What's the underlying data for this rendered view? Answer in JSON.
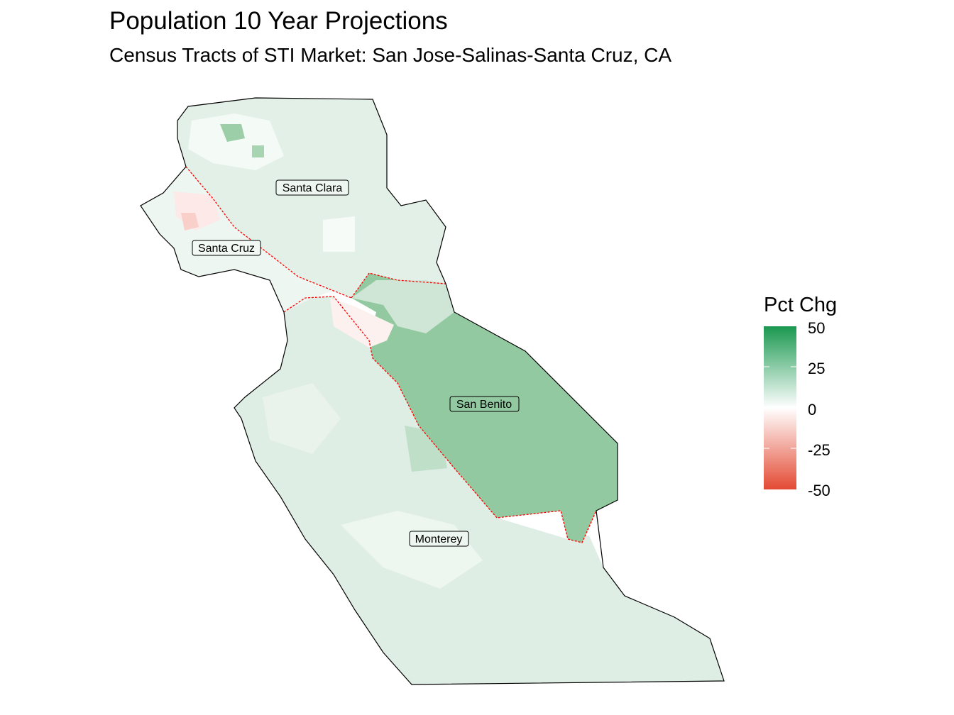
{
  "title": "Population 10 Year Projections",
  "subtitle": "Census Tracts of STI Market: San Jose-Salinas-Santa Cruz, CA",
  "legend": {
    "title": "Pct Chg",
    "ticks": [
      "50",
      "25",
      "0",
      "-25",
      "-50"
    ],
    "scale": {
      "min": -50,
      "max": 50,
      "colors": {
        "low": "#e34a33",
        "mid": "#ffffff",
        "high": "#1a9850"
      }
    }
  },
  "counties": [
    {
      "name": "Santa Clara",
      "approx_pct_chg": 5
    },
    {
      "name": "Santa Cruz",
      "approx_pct_chg": -3
    },
    {
      "name": "San Benito",
      "approx_pct_chg": 30
    },
    {
      "name": "Monterey",
      "approx_pct_chg": 8
    }
  ],
  "colors": {
    "market_outline": "#000000",
    "county_boundary_highlight": "#ff0000",
    "san_benito_fill": "#93c9a0",
    "base_fill": "#dfeee4"
  }
}
